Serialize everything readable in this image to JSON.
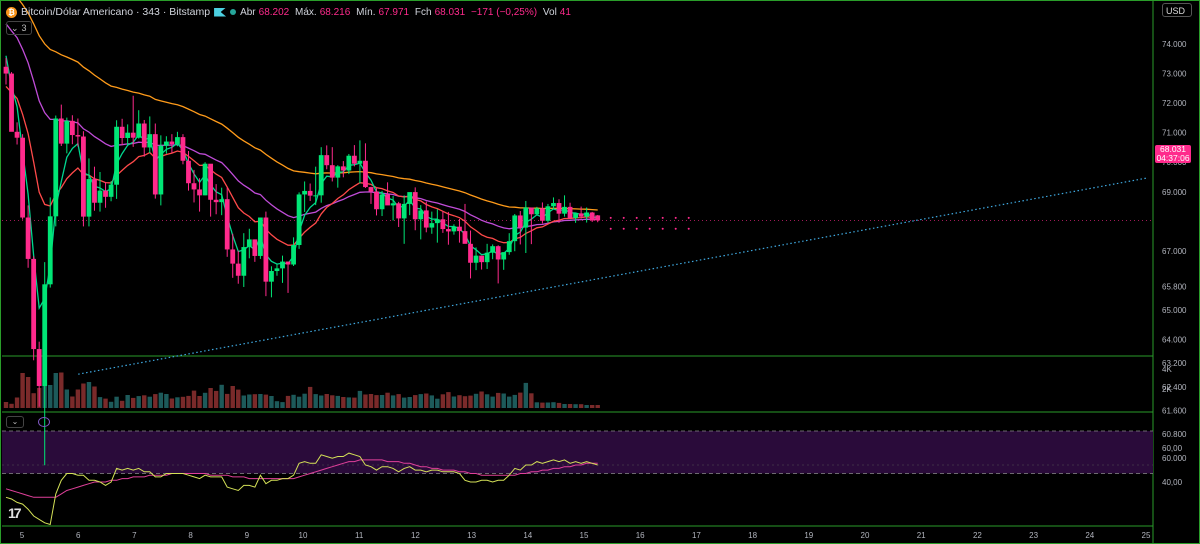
{
  "header": {
    "symbol": "Bitcoin/Dólar Americano · 343 · Bitstamp",
    "open_label": "Abr",
    "open": "68.202",
    "high_label": "Máx.",
    "high": "68.216",
    "low_label": "Mín.",
    "low": "67.971",
    "close_label": "Fch",
    "close": "68.031",
    "change": "−171 (−0,25%)",
    "vol_label": "Vol",
    "vol": "41",
    "indicator_count": "3",
    "currency": "USD"
  },
  "price_tag": {
    "price": "68.031",
    "countdown": "04:37:06"
  },
  "colors": {
    "up": "#00e676",
    "down": "#ff2a8c",
    "vol_up": "#1d5a5a",
    "vol_down": "#7a2a2a",
    "ma_fast": "#00d68f",
    "ma_red": "#ff4a4a",
    "ma_purple": "#c04cd8",
    "ma_orange": "#ff9b1a",
    "rsi": "#d4e157",
    "rsi_ma": "#e0409a",
    "rsi_band": "#2a0b3a",
    "trendline": "#3fa9e0"
  },
  "chart_data": {
    "type": "candlestick",
    "y_ticks": [
      "74.000",
      "73.000",
      "72.000",
      "71.000",
      "70.000",
      "69.000",
      "67.000",
      "65.800",
      "65.000",
      "64.000",
      "63.200",
      "62.400",
      "61.600",
      "60.800",
      "60.000"
    ],
    "y_tick_values": [
      74000,
      73000,
      72000,
      71000,
      70000,
      69000,
      67000,
      65800,
      65000,
      64000,
      63200,
      62400,
      61600,
      60800,
      60000
    ],
    "x_ticks": [
      "5",
      "6",
      "7",
      "8",
      "9",
      "10",
      "11",
      "12",
      "13",
      "14",
      "15",
      "16",
      "17",
      "18",
      "19",
      "20",
      "21",
      "22",
      "23",
      "24",
      "25"
    ],
    "volume_ticks": [
      "4K",
      "2K"
    ],
    "rsi_ticks": [
      "60,00",
      "40,00"
    ],
    "candles": [
      [
        73230,
        73530,
        72630,
        73000
      ],
      [
        73000,
        73050,
        71050,
        71030
      ],
      [
        71030,
        71350,
        70600,
        70830
      ],
      [
        70830,
        70950,
        68060,
        68130
      ],
      [
        68130,
        68540,
        66430,
        66730
      ],
      [
        66730,
        66820,
        63300,
        63680
      ],
      [
        63680,
        63930,
        61730,
        62430
      ],
      [
        62430,
        66620,
        59750,
        65870
      ],
      [
        65870,
        68810,
        65760,
        68170
      ],
      [
        68170,
        71580,
        67830,
        71480
      ],
      [
        71480,
        71950,
        70550,
        70630
      ],
      [
        70630,
        71510,
        70300,
        71400
      ],
      [
        71400,
        71590,
        70610,
        70920
      ],
      [
        70920,
        71480,
        70530,
        70870
      ],
      [
        70870,
        71050,
        67830,
        68160
      ],
      [
        68160,
        70130,
        67830,
        69430
      ],
      [
        69430,
        69850,
        68360,
        68630
      ],
      [
        68630,
        69670,
        68330,
        69040
      ],
      [
        69040,
        69320,
        68460,
        68830
      ],
      [
        68830,
        69360,
        68680,
        69240
      ],
      [
        69240,
        71420,
        68760,
        71200
      ],
      [
        71200,
        71470,
        70580,
        70820
      ],
      [
        70820,
        71280,
        70590,
        71000
      ],
      [
        71000,
        72250,
        70520,
        70830
      ],
      [
        70830,
        71760,
        70800,
        71310
      ],
      [
        71310,
        71430,
        70190,
        70500
      ],
      [
        70500,
        71550,
        70310,
        70950
      ],
      [
        70950,
        71310,
        68770,
        68910
      ],
      [
        68910,
        70910,
        68540,
        70560
      ],
      [
        70560,
        70880,
        70290,
        70700
      ],
      [
        70700,
        70950,
        70320,
        70610
      ],
      [
        70610,
        71030,
        70540,
        70850
      ],
      [
        70850,
        70950,
        69930,
        70050
      ],
      [
        70050,
        70380,
        69040,
        69290
      ],
      [
        69290,
        69740,
        68640,
        69080
      ],
      [
        69080,
        69460,
        68330,
        68880
      ],
      [
        68880,
        70000,
        68880,
        69950
      ],
      [
        69950,
        69940,
        68160,
        68730
      ],
      [
        68730,
        69260,
        68240,
        68650
      ],
      [
        68650,
        69140,
        68210,
        68750
      ],
      [
        68750,
        69140,
        66800,
        67050
      ],
      [
        67050,
        67580,
        66090,
        66570
      ],
      [
        66570,
        67010,
        65890,
        66160
      ],
      [
        66160,
        67600,
        65780,
        67130
      ],
      [
        67130,
        67750,
        66750,
        67390
      ],
      [
        67390,
        67390,
        66630,
        66830
      ],
      [
        66830,
        68130,
        66730,
        68130
      ],
      [
        68130,
        68330,
        65470,
        65960
      ],
      [
        65960,
        66480,
        65430,
        66320
      ],
      [
        66320,
        66550,
        66160,
        66410
      ],
      [
        66410,
        66840,
        65920,
        66640
      ],
      [
        66640,
        66640,
        65580,
        66540
      ],
      [
        66540,
        67460,
        66490,
        67200
      ],
      [
        67200,
        68980,
        67070,
        68910
      ],
      [
        68910,
        69350,
        68320,
        69030
      ],
      [
        69030,
        69280,
        68690,
        68870
      ],
      [
        68870,
        69850,
        68550,
        68880
      ],
      [
        68880,
        70510,
        68630,
        70240
      ],
      [
        70240,
        70570,
        69760,
        69900
      ],
      [
        69900,
        70510,
        69350,
        69480
      ],
      [
        69480,
        69900,
        69140,
        69860
      ],
      [
        69860,
        70040,
        69490,
        69720
      ],
      [
        69720,
        70280,
        69600,
        70220
      ],
      [
        70220,
        70580,
        69860,
        69950
      ],
      [
        69950,
        70740,
        69280,
        70050
      ],
      [
        70050,
        70640,
        69130,
        69160
      ],
      [
        69160,
        69170,
        68590,
        69010
      ],
      [
        69010,
        69120,
        68200,
        68410
      ],
      [
        68410,
        69030,
        68180,
        68910
      ],
      [
        68910,
        69320,
        68620,
        68540
      ],
      [
        68540,
        68860,
        68030,
        68610
      ],
      [
        68610,
        68660,
        67810,
        68100
      ],
      [
        68100,
        68880,
        67240,
        68590
      ],
      [
        68590,
        68920,
        68210,
        68990
      ],
      [
        68990,
        69150,
        67700,
        68070
      ],
      [
        68070,
        68550,
        67390,
        68370
      ],
      [
        68370,
        68670,
        67630,
        67790
      ],
      [
        67790,
        68330,
        67580,
        67940
      ],
      [
        67940,
        68410,
        67280,
        68070
      ],
      [
        68070,
        68340,
        67610,
        67740
      ],
      [
        67740,
        68320,
        67210,
        67660
      ],
      [
        67660,
        67900,
        67550,
        67820
      ],
      [
        67820,
        68080,
        67280,
        67670
      ],
      [
        67670,
        68590,
        67320,
        67240
      ],
      [
        67240,
        67690,
        66070,
        66600
      ],
      [
        66600,
        67120,
        66350,
        66840
      ],
      [
        66840,
        66830,
        66370,
        66620
      ],
      [
        66620,
        67240,
        66390,
        66940
      ],
      [
        66940,
        67220,
        66720,
        67160
      ],
      [
        67160,
        67190,
        65900,
        66710
      ],
      [
        66710,
        66860,
        66360,
        66960
      ],
      [
        66960,
        67600,
        66870,
        67330
      ],
      [
        67330,
        68250,
        66990,
        68200
      ],
      [
        68200,
        68350,
        67220,
        67790
      ],
      [
        67790,
        68690,
        66930,
        68470
      ],
      [
        68470,
        68390,
        67230,
        68240
      ],
      [
        68240,
        68490,
        68230,
        68440
      ],
      [
        68440,
        68640,
        67930,
        68020
      ],
      [
        68020,
        68590,
        67960,
        68510
      ],
      [
        68510,
        68810,
        68430,
        68620
      ],
      [
        68620,
        68750,
        67950,
        68260
      ],
      [
        68260,
        68880,
        68160,
        68490
      ],
      [
        68490,
        68630,
        68100,
        68110
      ],
      [
        68110,
        68220,
        67950,
        68270
      ],
      [
        68270,
        68500,
        68090,
        68160
      ],
      [
        68160,
        68470,
        67960,
        68300
      ],
      [
        68300,
        68320,
        67980,
        68030
      ],
      [
        68202,
        68216,
        67971,
        68031
      ]
    ],
    "volume": [
      600,
      420,
      1050,
      3500,
      3100,
      1480,
      2000,
      2350,
      2300,
      3500,
      3550,
      1850,
      1150,
      1850,
      2450,
      2600,
      2150,
      1090,
      940,
      620,
      1130,
      720,
      1300,
      1010,
      1190,
      1270,
      1130,
      1390,
      1530,
      1400,
      950,
      1070,
      1120,
      1210,
      1740,
      1200,
      1520,
      2000,
      1710,
      2320,
      1410,
      2200,
      1840,
      1250,
      1350,
      1380,
      1400,
      1340,
      1200,
      680,
      590,
      1210,
      1320,
      1130,
      1430,
      2110,
      1390,
      1250,
      1400,
      1270,
      1210,
      1100,
      1060,
      1040,
      1710,
      1350,
      1400,
      1290,
      1300,
      1530,
      1260,
      1390,
      1040,
      1100,
      1290,
      1390,
      1450,
      1260,
      930,
      1370,
      1590,
      1150,
      1280,
      1180,
      1240,
      1420,
      1650,
      1370,
      1140,
      1510,
      1450,
      1140,
      1310,
      1540,
      2510,
      1470,
      570,
      540,
      550,
      580,
      510,
      400,
      400,
      380,
      380,
      300,
      300,
      300
    ],
    "volume_direction": "up when close >= open",
    "rsi": [
      31,
      30,
      28,
      27,
      24,
      20,
      18,
      16,
      15,
      33,
      41,
      45,
      45,
      44,
      44,
      41,
      41,
      40,
      38,
      40,
      48,
      47,
      48,
      47,
      48,
      46,
      46,
      43,
      43,
      45,
      45,
      45,
      45,
      44,
      43,
      42,
      44,
      43,
      43,
      43,
      37,
      36,
      35,
      38,
      38,
      37,
      44,
      39,
      41,
      41,
      42,
      42,
      44,
      51,
      52,
      51,
      51,
      56,
      55,
      54,
      55,
      55,
      57,
      56,
      55,
      50,
      49,
      47,
      49,
      49,
      48,
      46,
      48,
      49,
      47,
      47,
      46,
      47,
      47,
      46,
      46,
      46,
      45,
      41,
      40,
      40,
      41,
      41,
      40,
      41,
      41,
      44,
      48,
      47,
      50,
      50,
      52,
      51,
      52,
      53,
      52,
      53,
      51,
      52,
      51,
      52,
      51,
      50
    ],
    "rsi_ma": [
      36,
      35,
      34,
      33,
      32,
      31,
      31,
      31,
      31,
      31,
      33,
      35,
      36,
      37,
      38,
      39,
      40,
      40,
      40,
      41,
      41,
      42,
      42,
      43,
      43,
      43,
      44,
      44,
      44,
      44,
      45,
      45,
      45,
      45,
      45,
      45,
      45,
      44,
      44,
      44,
      44,
      43,
      43,
      43,
      42,
      42,
      42,
      42,
      42,
      42,
      42,
      42,
      42,
      43,
      44,
      45,
      46,
      47,
      48,
      49,
      50,
      51,
      52,
      52,
      53,
      53,
      53,
      53,
      53,
      52,
      52,
      52,
      51,
      51,
      50,
      49,
      49,
      48,
      48,
      47,
      47,
      47,
      46,
      46,
      45,
      45,
      44,
      44,
      44,
      44,
      44,
      44,
      44,
      45,
      45,
      46,
      46,
      47,
      47,
      48,
      48,
      49,
      49,
      50,
      50,
      51,
      51,
      51
    ],
    "rsi_band": [
      70,
      45
    ],
    "rsi_mid": 50,
    "trendline_from": [
      "6",
      62830
    ],
    "trendline_to": [
      "25",
      69460
    ]
  }
}
